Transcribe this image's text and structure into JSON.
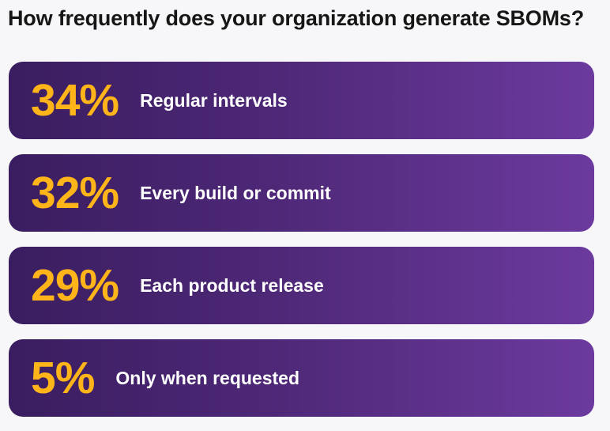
{
  "chart_data": {
    "type": "table",
    "title": "How frequently does your organization generate SBOMs?",
    "categories": [
      "Regular intervals",
      "Every build or commit",
      "Each product release",
      "Only when requested"
    ],
    "values": [
      34,
      32,
      29,
      5
    ],
    "value_labels": [
      "34%",
      "32%",
      "29%",
      "5%"
    ],
    "colors": {
      "percent": "#ffb419",
      "label": "#ffffff",
      "card_start": "#3a1d60",
      "card_end": "#6c3a9e",
      "title": "#161616"
    }
  }
}
